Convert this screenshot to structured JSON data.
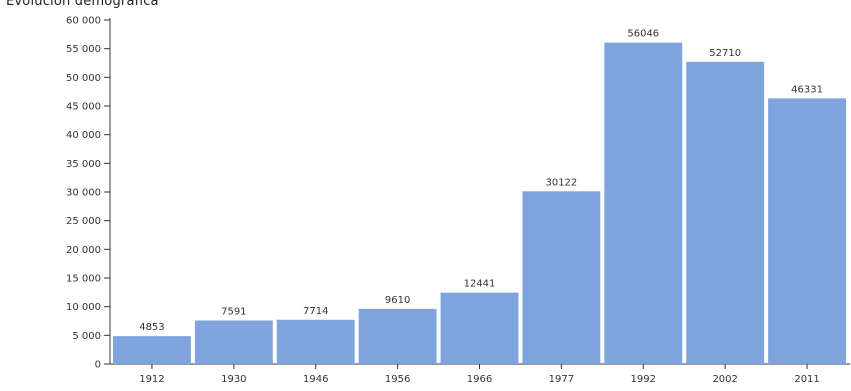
{
  "chart_data": {
    "type": "bar",
    "title": "Evolución demográfica",
    "xlabel": "",
    "ylabel": "",
    "categories": [
      "1912",
      "1930",
      "1946",
      "1956",
      "1966",
      "1977",
      "1992",
      "2002",
      "2011"
    ],
    "values": [
      4853,
      7591,
      7714,
      9610,
      12441,
      30122,
      56046,
      52710,
      46331
    ],
    "value_labels": [
      "4853",
      "7591",
      "7714",
      "9610",
      "12441",
      "30122",
      "56046",
      "52710",
      "46331"
    ],
    "ylim": [
      0,
      60000
    ],
    "yticks": [
      0,
      5000,
      10000,
      15000,
      20000,
      25000,
      30000,
      35000,
      40000,
      45000,
      50000,
      55000,
      60000
    ],
    "ytick_labels": [
      "0",
      "5 000",
      "10 000",
      "15 000",
      "20 000",
      "25 000",
      "30 000",
      "35 000",
      "40 000",
      "45 000",
      "50 000",
      "55 000",
      "60 000"
    ],
    "bar_color": "#7fa3dc",
    "grid": false,
    "legend": "none"
  }
}
